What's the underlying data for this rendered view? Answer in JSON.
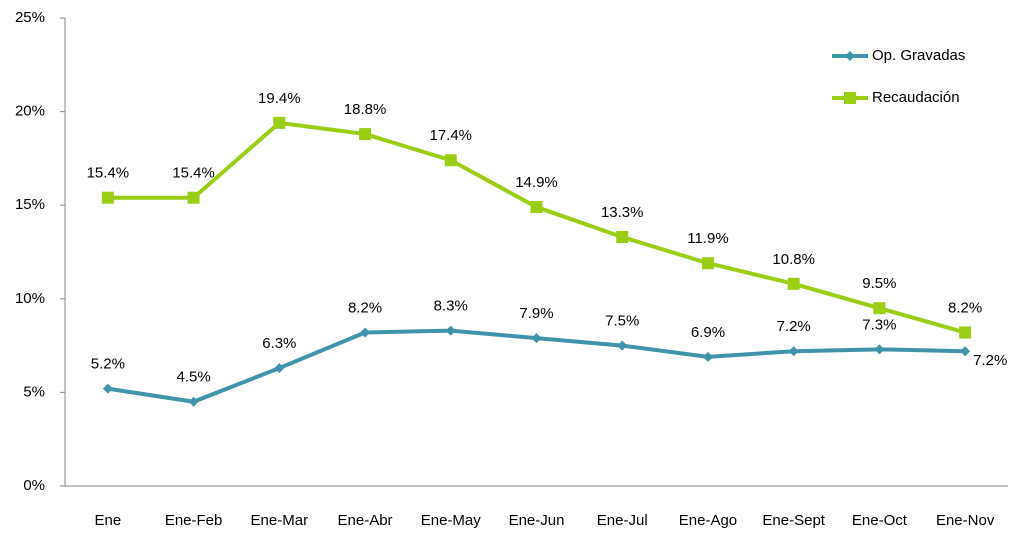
{
  "chart_data": {
    "type": "line",
    "categories": [
      "Ene",
      "Ene-Feb",
      "Ene-Mar",
      "Ene-Abr",
      "Ene-May",
      "Ene-Jun",
      "Ene-Jul",
      "Ene-Ago",
      "Ene-Sept",
      "Ene-Oct",
      "Ene-Nov"
    ],
    "series": [
      {
        "name": "Op. Gravadas",
        "color": "#3f93ab",
        "marker": "diamond",
        "values": [
          5.2,
          4.5,
          6.3,
          8.2,
          8.3,
          7.9,
          7.5,
          6.9,
          7.2,
          7.3,
          7.2
        ],
        "value_labels": [
          "5.2%",
          "4.5%",
          "6.3%",
          "8.2%",
          "8.3%",
          "7.9%",
          "7.5%",
          "6.9%",
          "7.2%",
          "7.3%",
          "7.2%"
        ]
      },
      {
        "name": "Recaudación",
        "color": "#9acd14",
        "marker": "square",
        "values": [
          15.4,
          15.4,
          19.4,
          18.8,
          17.4,
          14.9,
          13.3,
          11.9,
          10.8,
          9.5,
          8.2
        ],
        "value_labels": [
          "15.4%",
          "15.4%",
          "19.4%",
          "18.8%",
          "17.4%",
          "14.9%",
          "13.3%",
          "11.9%",
          "10.8%",
          "9.5%",
          "8.2%"
        ]
      }
    ],
    "ylim": [
      0,
      25
    ],
    "yticks": [
      {
        "value": 0,
        "label": "0%"
      },
      {
        "value": 5,
        "label": "5%"
      },
      {
        "value": 10,
        "label": "10%"
      },
      {
        "value": 15,
        "label": "15%"
      },
      {
        "value": 20,
        "label": "20%"
      },
      {
        "value": 25,
        "label": "25%"
      }
    ],
    "grid": false,
    "legend": "top-right"
  }
}
